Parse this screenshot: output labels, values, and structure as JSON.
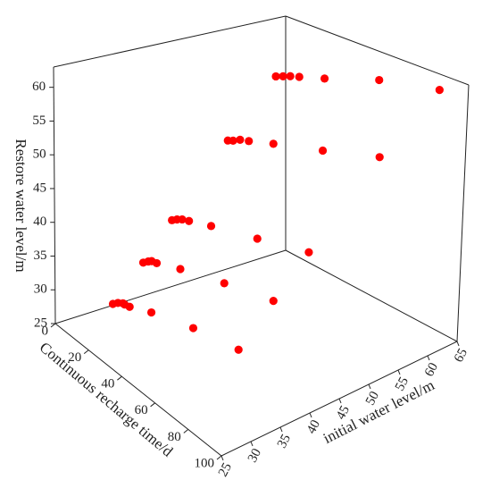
{
  "chart_data": {
    "type": "scatter3d",
    "xlabel": "Continuous recharge time/d",
    "ylabel": "initial water level/m",
    "zlabel": "Restore water level/m",
    "color": "#ff0000",
    "xlim": [
      0,
      100
    ],
    "xticks": [
      0,
      20,
      40,
      60,
      80,
      100
    ],
    "ylim": [
      25,
      65
    ],
    "yticks": [
      25,
      30,
      35,
      40,
      45,
      50,
      55,
      60,
      65
    ],
    "zlim": [
      25,
      63
    ],
    "zticks": [
      25,
      30,
      35,
      40,
      45,
      50,
      55,
      60
    ],
    "x": [
      0,
      3,
      6,
      7,
      10,
      23,
      48,
      75,
      1,
      4,
      6,
      9,
      23,
      49,
      78,
      1,
      4,
      7,
      11,
      24,
      51,
      81,
      0,
      3,
      7,
      12,
      26,
      54,
      86,
      1,
      5,
      9,
      14,
      28,
      58,
      91
    ],
    "y": [
      35,
      35,
      35,
      35,
      35,
      35,
      35,
      35,
      40,
      40,
      40,
      40,
      40,
      40,
      40,
      45,
      45,
      45,
      45,
      45,
      45,
      45,
      55,
      55,
      55,
      55,
      55,
      55,
      55,
      63,
      63,
      63,
      63,
      63,
      63,
      63
    ],
    "z": [
      25.2,
      25.9,
      26.4,
      26.4,
      26.6,
      28.1,
      30.2,
      31.7,
      30.3,
      31.0,
      31.4,
      31.6,
      33.1,
      35.3,
      37.4,
      35.5,
      36.1,
      36.6,
      37.0,
      38.3,
      40.6,
      43.1,
      45.3,
      45.7,
      46.4,
      46.9,
      48.4,
      51.1,
      54.2,
      53.8,
      54.3,
      54.8,
      55.3,
      56.7,
      59.9,
      62.0
    ]
  }
}
